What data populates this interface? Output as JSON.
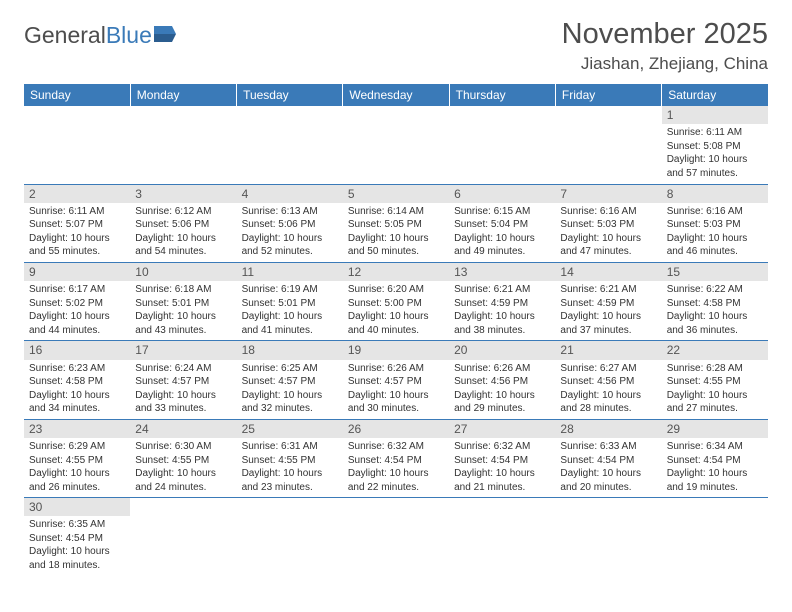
{
  "logo": {
    "text1": "General",
    "text2": "Blue"
  },
  "title": "November 2025",
  "location": "Jiashan, Zhejiang, China",
  "colors": {
    "header_bg": "#3a7ab8",
    "header_text": "#ffffff",
    "daynum_bg": "#e5e5e5",
    "daynum_text": "#555555",
    "body_text": "#333333",
    "rule": "#3a7ab8"
  },
  "weekdays": [
    "Sunday",
    "Monday",
    "Tuesday",
    "Wednesday",
    "Thursday",
    "Friday",
    "Saturday"
  ],
  "weeks": [
    [
      null,
      null,
      null,
      null,
      null,
      null,
      {
        "n": "1",
        "sr": "Sunrise: 6:11 AM",
        "ss": "Sunset: 5:08 PM",
        "d1": "Daylight: 10 hours",
        "d2": "and 57 minutes."
      }
    ],
    [
      {
        "n": "2",
        "sr": "Sunrise: 6:11 AM",
        "ss": "Sunset: 5:07 PM",
        "d1": "Daylight: 10 hours",
        "d2": "and 55 minutes."
      },
      {
        "n": "3",
        "sr": "Sunrise: 6:12 AM",
        "ss": "Sunset: 5:06 PM",
        "d1": "Daylight: 10 hours",
        "d2": "and 54 minutes."
      },
      {
        "n": "4",
        "sr": "Sunrise: 6:13 AM",
        "ss": "Sunset: 5:06 PM",
        "d1": "Daylight: 10 hours",
        "d2": "and 52 minutes."
      },
      {
        "n": "5",
        "sr": "Sunrise: 6:14 AM",
        "ss": "Sunset: 5:05 PM",
        "d1": "Daylight: 10 hours",
        "d2": "and 50 minutes."
      },
      {
        "n": "6",
        "sr": "Sunrise: 6:15 AM",
        "ss": "Sunset: 5:04 PM",
        "d1": "Daylight: 10 hours",
        "d2": "and 49 minutes."
      },
      {
        "n": "7",
        "sr": "Sunrise: 6:16 AM",
        "ss": "Sunset: 5:03 PM",
        "d1": "Daylight: 10 hours",
        "d2": "and 47 minutes."
      },
      {
        "n": "8",
        "sr": "Sunrise: 6:16 AM",
        "ss": "Sunset: 5:03 PM",
        "d1": "Daylight: 10 hours",
        "d2": "and 46 minutes."
      }
    ],
    [
      {
        "n": "9",
        "sr": "Sunrise: 6:17 AM",
        "ss": "Sunset: 5:02 PM",
        "d1": "Daylight: 10 hours",
        "d2": "and 44 minutes."
      },
      {
        "n": "10",
        "sr": "Sunrise: 6:18 AM",
        "ss": "Sunset: 5:01 PM",
        "d1": "Daylight: 10 hours",
        "d2": "and 43 minutes."
      },
      {
        "n": "11",
        "sr": "Sunrise: 6:19 AM",
        "ss": "Sunset: 5:01 PM",
        "d1": "Daylight: 10 hours",
        "d2": "and 41 minutes."
      },
      {
        "n": "12",
        "sr": "Sunrise: 6:20 AM",
        "ss": "Sunset: 5:00 PM",
        "d1": "Daylight: 10 hours",
        "d2": "and 40 minutes."
      },
      {
        "n": "13",
        "sr": "Sunrise: 6:21 AM",
        "ss": "Sunset: 4:59 PM",
        "d1": "Daylight: 10 hours",
        "d2": "and 38 minutes."
      },
      {
        "n": "14",
        "sr": "Sunrise: 6:21 AM",
        "ss": "Sunset: 4:59 PM",
        "d1": "Daylight: 10 hours",
        "d2": "and 37 minutes."
      },
      {
        "n": "15",
        "sr": "Sunrise: 6:22 AM",
        "ss": "Sunset: 4:58 PM",
        "d1": "Daylight: 10 hours",
        "d2": "and 36 minutes."
      }
    ],
    [
      {
        "n": "16",
        "sr": "Sunrise: 6:23 AM",
        "ss": "Sunset: 4:58 PM",
        "d1": "Daylight: 10 hours",
        "d2": "and 34 minutes."
      },
      {
        "n": "17",
        "sr": "Sunrise: 6:24 AM",
        "ss": "Sunset: 4:57 PM",
        "d1": "Daylight: 10 hours",
        "d2": "and 33 minutes."
      },
      {
        "n": "18",
        "sr": "Sunrise: 6:25 AM",
        "ss": "Sunset: 4:57 PM",
        "d1": "Daylight: 10 hours",
        "d2": "and 32 minutes."
      },
      {
        "n": "19",
        "sr": "Sunrise: 6:26 AM",
        "ss": "Sunset: 4:57 PM",
        "d1": "Daylight: 10 hours",
        "d2": "and 30 minutes."
      },
      {
        "n": "20",
        "sr": "Sunrise: 6:26 AM",
        "ss": "Sunset: 4:56 PM",
        "d1": "Daylight: 10 hours",
        "d2": "and 29 minutes."
      },
      {
        "n": "21",
        "sr": "Sunrise: 6:27 AM",
        "ss": "Sunset: 4:56 PM",
        "d1": "Daylight: 10 hours",
        "d2": "and 28 minutes."
      },
      {
        "n": "22",
        "sr": "Sunrise: 6:28 AM",
        "ss": "Sunset: 4:55 PM",
        "d1": "Daylight: 10 hours",
        "d2": "and 27 minutes."
      }
    ],
    [
      {
        "n": "23",
        "sr": "Sunrise: 6:29 AM",
        "ss": "Sunset: 4:55 PM",
        "d1": "Daylight: 10 hours",
        "d2": "and 26 minutes."
      },
      {
        "n": "24",
        "sr": "Sunrise: 6:30 AM",
        "ss": "Sunset: 4:55 PM",
        "d1": "Daylight: 10 hours",
        "d2": "and 24 minutes."
      },
      {
        "n": "25",
        "sr": "Sunrise: 6:31 AM",
        "ss": "Sunset: 4:55 PM",
        "d1": "Daylight: 10 hours",
        "d2": "and 23 minutes."
      },
      {
        "n": "26",
        "sr": "Sunrise: 6:32 AM",
        "ss": "Sunset: 4:54 PM",
        "d1": "Daylight: 10 hours",
        "d2": "and 22 minutes."
      },
      {
        "n": "27",
        "sr": "Sunrise: 6:32 AM",
        "ss": "Sunset: 4:54 PM",
        "d1": "Daylight: 10 hours",
        "d2": "and 21 minutes."
      },
      {
        "n": "28",
        "sr": "Sunrise: 6:33 AM",
        "ss": "Sunset: 4:54 PM",
        "d1": "Daylight: 10 hours",
        "d2": "and 20 minutes."
      },
      {
        "n": "29",
        "sr": "Sunrise: 6:34 AM",
        "ss": "Sunset: 4:54 PM",
        "d1": "Daylight: 10 hours",
        "d2": "and 19 minutes."
      }
    ],
    [
      {
        "n": "30",
        "sr": "Sunrise: 6:35 AM",
        "ss": "Sunset: 4:54 PM",
        "d1": "Daylight: 10 hours",
        "d2": "and 18 minutes."
      },
      null,
      null,
      null,
      null,
      null,
      null
    ]
  ]
}
